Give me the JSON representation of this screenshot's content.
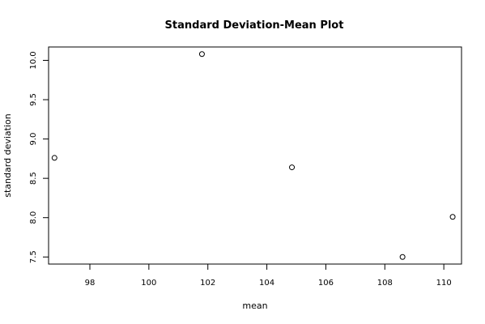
{
  "chart_data": {
    "type": "scatter",
    "title": "Standard Deviation-Mean Plot",
    "xlabel": "mean",
    "ylabel": "standard deviation",
    "xlim": [
      96.6,
      110.6
    ],
    "ylim": [
      7.41,
      10.17
    ],
    "x_ticks": [
      "98",
      "100",
      "102",
      "104",
      "106",
      "108",
      "110"
    ],
    "y_ticks": [
      "7.5",
      "8.0",
      "8.5",
      "9.0",
      "9.5",
      "10.0"
    ],
    "grid": false,
    "legend": "none",
    "points": [
      {
        "x": 96.8,
        "y": 8.76
      },
      {
        "x": 101.8,
        "y": 10.08
      },
      {
        "x": 104.85,
        "y": 8.64
      },
      {
        "x": 108.6,
        "y": 7.5
      },
      {
        "x": 110.3,
        "y": 8.01
      }
    ]
  }
}
